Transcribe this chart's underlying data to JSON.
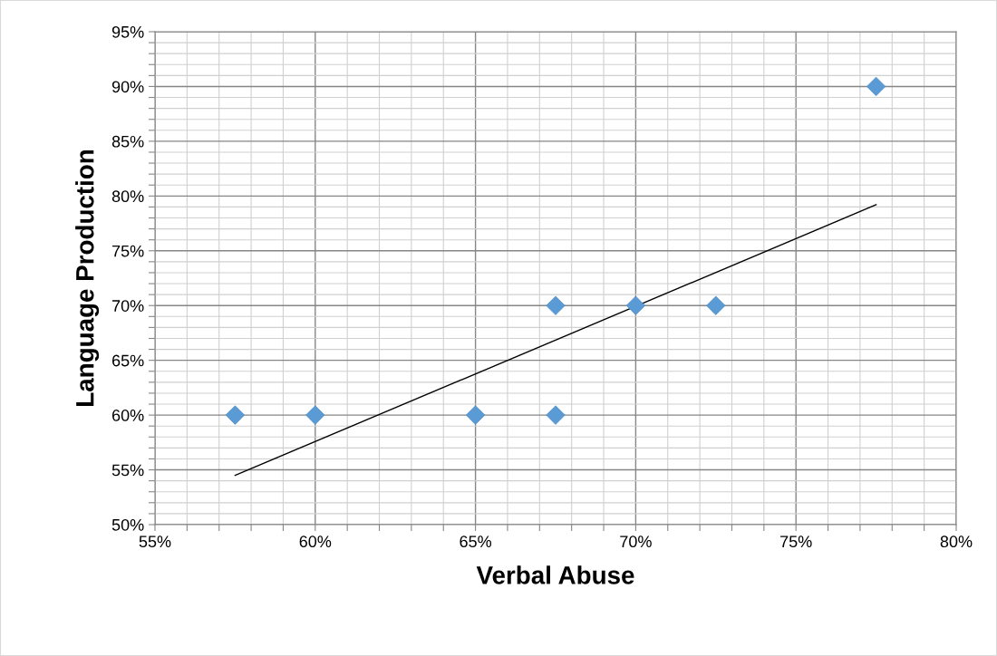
{
  "chart_data": {
    "type": "scatter",
    "xlabel": "Verbal Abuse",
    "ylabel": "Language Production",
    "series": [
      {
        "color": "#5b9bd5",
        "marker": "diamond",
        "x": [
          57.5,
          60,
          65,
          67.5,
          67.5,
          70,
          72.5,
          77.5
        ],
        "values": [
          60,
          60,
          60,
          70,
          60,
          70,
          70,
          90
        ]
      },
      {
        "type": "line",
        "color": "#000000",
        "marker": "none",
        "x": [
          57.5,
          77.5
        ],
        "values": [
          54.5,
          79.2
        ]
      }
    ],
    "xlim": [
      55,
      80
    ],
    "xticks": [
      {
        "value": 55,
        "label": "55%"
      },
      {
        "value": 56,
        "label": null
      },
      {
        "value": 57,
        "label": null
      },
      {
        "value": 58,
        "label": null
      },
      {
        "value": 59,
        "label": null
      },
      {
        "value": 60,
        "label": "60%"
      },
      {
        "value": 61,
        "label": null
      },
      {
        "value": 62,
        "label": null
      },
      {
        "value": 63,
        "label": null
      },
      {
        "value": 64,
        "label": null
      },
      {
        "value": 65,
        "label": "65%"
      },
      {
        "value": 66,
        "label": null
      },
      {
        "value": 67,
        "label": null
      },
      {
        "value": 68,
        "label": null
      },
      {
        "value": 69,
        "label": null
      },
      {
        "value": 70,
        "label": "70%"
      },
      {
        "value": 71,
        "label": null
      },
      {
        "value": 72,
        "label": null
      },
      {
        "value": 73,
        "label": null
      },
      {
        "value": 74,
        "label": null
      },
      {
        "value": 75,
        "label": "75%"
      },
      {
        "value": 76,
        "label": null
      },
      {
        "value": 77,
        "label": null
      },
      {
        "value": 78,
        "label": null
      },
      {
        "value": 79,
        "label": null
      },
      {
        "value": 80,
        "label": "80%"
      }
    ],
    "ylim": [
      50,
      95
    ],
    "yticks": [
      {
        "value": 50,
        "label": "50%"
      },
      {
        "value": 51,
        "label": null
      },
      {
        "value": 52,
        "label": null
      },
      {
        "value": 53,
        "label": null
      },
      {
        "value": 54,
        "label": null
      },
      {
        "value": 55,
        "label": "55%"
      },
      {
        "value": 56,
        "label": null
      },
      {
        "value": 57,
        "label": null
      },
      {
        "value": 58,
        "label": null
      },
      {
        "value": 59,
        "label": null
      },
      {
        "value": 60,
        "label": "60%"
      },
      {
        "value": 61,
        "label": null
      },
      {
        "value": 62,
        "label": null
      },
      {
        "value": 63,
        "label": null
      },
      {
        "value": 64,
        "label": null
      },
      {
        "value": 65,
        "label": "65%"
      },
      {
        "value": 66,
        "label": null
      },
      {
        "value": 67,
        "label": null
      },
      {
        "value": 68,
        "label": null
      },
      {
        "value": 69,
        "label": null
      },
      {
        "value": 70,
        "label": "70%"
      },
      {
        "value": 71,
        "label": null
      },
      {
        "value": 72,
        "label": null
      },
      {
        "value": 73,
        "label": null
      },
      {
        "value": 74,
        "label": null
      },
      {
        "value": 75,
        "label": "75%"
      },
      {
        "value": 76,
        "label": null
      },
      {
        "value": 77,
        "label": null
      },
      {
        "value": 78,
        "label": null
      },
      {
        "value": 79,
        "label": null
      },
      {
        "value": 80,
        "label": "80%"
      },
      {
        "value": 81,
        "label": null
      },
      {
        "value": 82,
        "label": null
      },
      {
        "value": 83,
        "label": null
      },
      {
        "value": 84,
        "label": null
      },
      {
        "value": 85,
        "label": "85%"
      },
      {
        "value": 86,
        "label": null
      },
      {
        "value": 87,
        "label": null
      },
      {
        "value": 88,
        "label": null
      },
      {
        "value": 89,
        "label": null
      },
      {
        "value": 90,
        "label": "90%"
      },
      {
        "value": 91,
        "label": null
      },
      {
        "value": 92,
        "label": null
      },
      {
        "value": 93,
        "label": null
      },
      {
        "value": 94,
        "label": null
      },
      {
        "value": 95,
        "label": "95%"
      }
    ],
    "grid": true,
    "legend": false
  }
}
